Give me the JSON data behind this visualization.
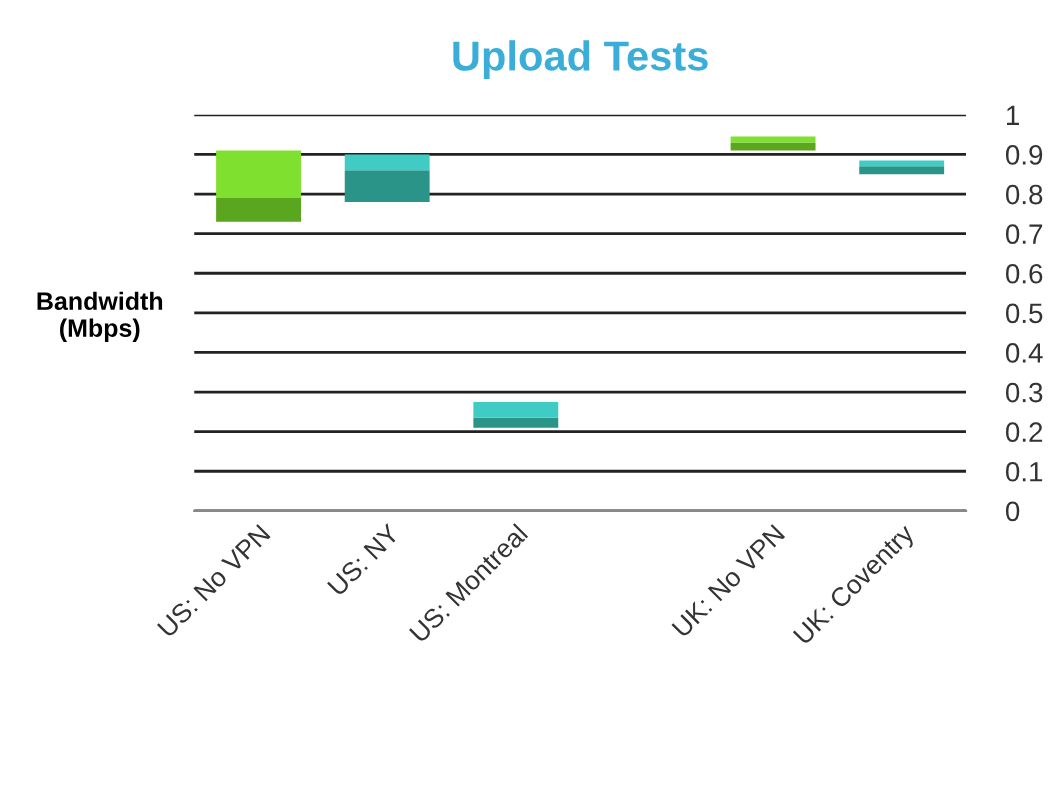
{
  "chart_data": {
    "type": "bar",
    "title": "Upload Tests",
    "ylabel": "Bandwidth\n(Mbps)",
    "categories": [
      "US: No VPN",
      "US: NY",
      "US: Montreal",
      null,
      "UK: No VPN",
      "UK: Coventry"
    ],
    "series": [
      {
        "base": [
          0.73,
          0.78,
          0.21,
          null,
          0.91,
          0.85
        ],
        "values": [
          0.06,
          0.08,
          0.025,
          null,
          0.02,
          0.02
        ],
        "colors": [
          "#5aa61e",
          "#2a9488",
          "#2a9488",
          null,
          "#5aa61e",
          "#2a9488"
        ]
      },
      {
        "base": [
          0.79,
          0.86,
          0.235,
          null,
          0.93,
          0.87
        ],
        "values": [
          0.12,
          0.04,
          0.04,
          null,
          0.015,
          0.015
        ],
        "colors": [
          "#80e030",
          "#40ccc4",
          "#40ccc4",
          null,
          "#80e030",
          "#40ccc4"
        ]
      }
    ],
    "ylim": [
      0,
      1
    ],
    "yticks": [
      0,
      0.1,
      0.2,
      0.3,
      0.4,
      0.5,
      0.6,
      0.7,
      0.8,
      0.9,
      1
    ],
    "grid": "y",
    "legend": false
  }
}
